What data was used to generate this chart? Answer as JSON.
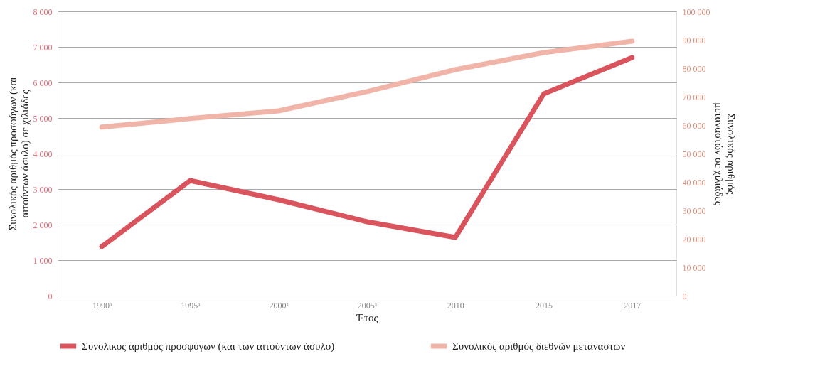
{
  "chart_data": {
    "type": "line",
    "xlabel": "Έτος",
    "ylabel": "Συνολικός αριθμός προσφύγων (και αιτούντων άσυλο) σε χιλιάδες",
    "y2label": "Συνολικός αριθμός μεταναστών σε χιλιάδες",
    "categories": [
      "1990ᵃ",
      "1995ᵃ",
      "2000ᵃ",
      "2005ᵃ",
      "2010",
      "2015",
      "2017"
    ],
    "series": [
      {
        "name": "Συνολικός αριθμός προσφύγων (και των αιτούντων άσυλο)",
        "color": "#d9545c",
        "values": [
          1380,
          3240,
          2700,
          2080,
          1640,
          5680,
          6700
        ]
      },
      {
        "name": "Συνολικός αριθμός διεθνών μεταναστών",
        "color": "#f0b5a8",
        "axis": "y2",
        "values": [
          59300,
          62300,
          65000,
          71800,
          79500,
          85500,
          89500
        ]
      }
    ],
    "ylim": [
      0,
      8000
    ],
    "yticks": [
      {
        "value": 0,
        "label": "0"
      },
      {
        "value": 1000,
        "label": "1 000"
      },
      {
        "value": 2000,
        "label": "2 000"
      },
      {
        "value": 3000,
        "label": "3 000"
      },
      {
        "value": 4000,
        "label": "4 000"
      },
      {
        "value": 5000,
        "label": "5 000"
      },
      {
        "value": 6000,
        "label": "6 000"
      },
      {
        "value": 7000,
        "label": "7 000"
      },
      {
        "value": 8000,
        "label": "8 000"
      }
    ],
    "y2lim": [
      0,
      100000
    ],
    "y2ticks": [
      {
        "value": 0,
        "label": "0"
      },
      {
        "value": 10000,
        "label": "10 000"
      },
      {
        "value": 20000,
        "label": "20 000"
      },
      {
        "value": 30000,
        "label": "30 000"
      },
      {
        "value": 40000,
        "label": "40 000"
      },
      {
        "value": 50000,
        "label": "50 000"
      },
      {
        "value": 60000,
        "label": "60 000"
      },
      {
        "value": 70000,
        "label": "70 000"
      },
      {
        "value": 80000,
        "label": "80 000"
      },
      {
        "value": 90000,
        "label": "90 000"
      },
      {
        "value": 100000,
        "label": "100 000"
      }
    ],
    "grid": "y",
    "legend": "bottom",
    "line_style": "solid"
  }
}
